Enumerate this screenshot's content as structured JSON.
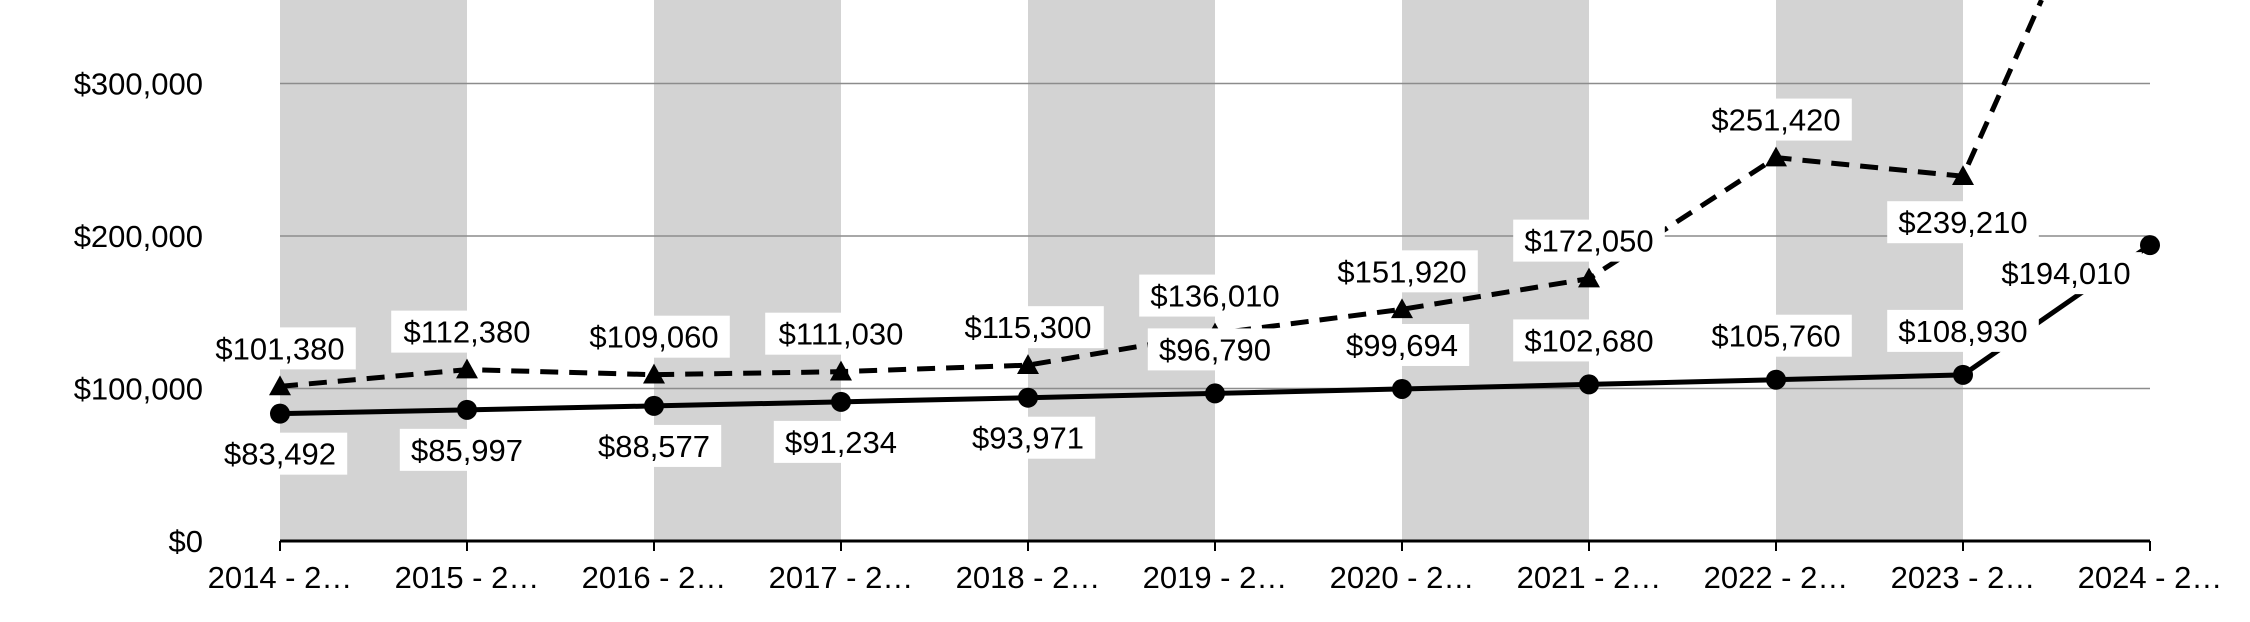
{
  "chart_data": {
    "type": "line",
    "categories": [
      "2014 - 2…",
      "2015 - 2…",
      "2016 - 2…",
      "2017 - 2…",
      "2018 - 2…",
      "2019 - 2…",
      "2020 - 2…",
      "2021 - 2…",
      "2022 - 2…",
      "2023 - 2…",
      "2024 - 2…"
    ],
    "series": [
      {
        "style": "dashed",
        "marker": "triangle",
        "color": "#000000",
        "values": [
          101380,
          112380,
          109060,
          111030,
          115300,
          136010,
          151920,
          172050,
          251420,
          239210,
          null
        ],
        "labels": [
          "$101,380",
          "$112,380",
          "$109,060",
          "$111,030",
          "$115,300",
          "$136,010",
          "$151,920",
          "$172,050",
          "$251,420",
          "$239,210",
          ""
        ]
      },
      {
        "style": "solid",
        "marker": "circle",
        "color": "#000000",
        "values": [
          83492,
          85997,
          88577,
          91234,
          93971,
          96790,
          99694,
          102680,
          105760,
          108930,
          194010
        ],
        "labels": [
          "$83,492",
          "$85,997",
          "$88,577",
          "$91,234",
          "$93,971",
          "$96,790",
          "$99,694",
          "$102,680",
          "$105,760",
          "$108,930",
          "$194,010"
        ]
      }
    ],
    "yticks": [
      0,
      100000,
      200000,
      300000
    ],
    "ytick_labels": [
      "$0",
      "$100,000",
      "$200,000",
      "$300,000"
    ],
    "ylim": [
      0,
      350000
    ],
    "title": "",
    "xlabel": "",
    "ylabel": "",
    "grid": "horizontal",
    "band_color": "#d3d3d3"
  }
}
